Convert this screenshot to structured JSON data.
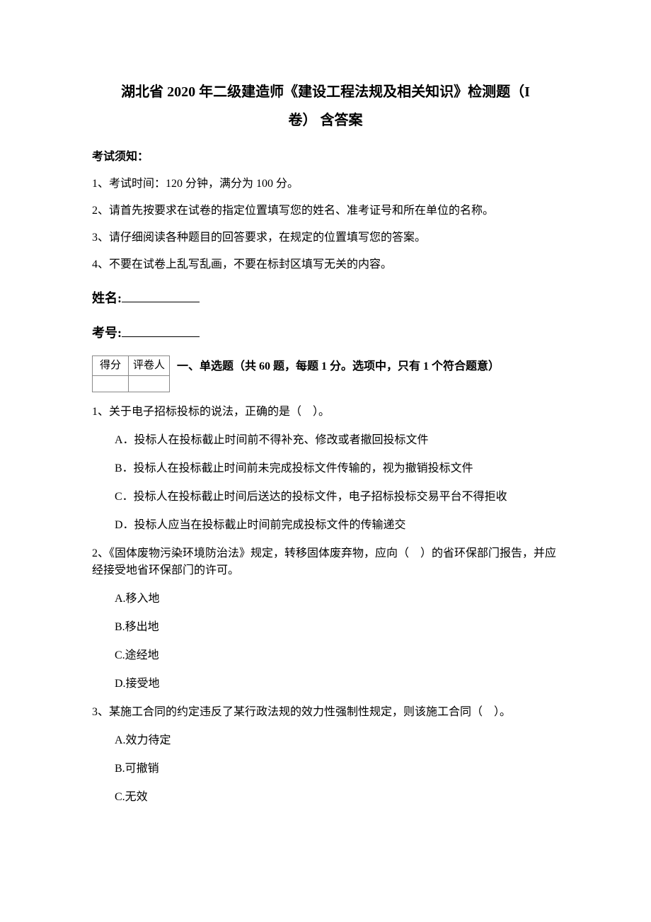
{
  "title_line1": "湖北省 2020 年二级建造师《建设工程法规及相关知识》检测题（I",
  "title_line2": "卷）  含答案",
  "notice_heading": "考试须知：",
  "instructions": [
    "1、考试时间：120 分钟，满分为 100 分。",
    "2、请首先按要求在试卷的指定位置填写您的姓名、准考证号和所在单位的名称。",
    "3、请仔细阅读各种题目的回答要求，在规定的位置填写您的答案。",
    "4、不要在试卷上乱写乱画，不要在标封区填写无关的内容。"
  ],
  "name_label": "姓名:",
  "id_label": "考号:",
  "score_header": [
    "得分",
    "评卷人"
  ],
  "section1_title": "一、单选题（共 60 题，每题 1 分。选项中，只有 1 个符合题意）",
  "questions": [
    {
      "stem": "1、关于电子招标投标的说法，正确的是（　）。",
      "options": [
        "A．投标人在投标截止时间前不得补充、修改或者撤回投标文件",
        "B．投标人在投标截止时间前未完成投标文件传输的，视为撤销投标文件",
        "C．投标人在投标截止时间后送达的投标文件，电子招标投标交易平台不得拒收",
        "D．投标人应当在投标截止时间前完成投标文件的传输递交"
      ]
    },
    {
      "stem": "2、《固体废物污染环境防治法》规定，转移固体废弃物，应向（　）的省环保部门报告，并应经接受地省环保部门的许可。",
      "options": [
        "A.移入地",
        "B.移出地",
        "C.途经地",
        "D.接受地"
      ]
    },
    {
      "stem": "3、某施工合同的约定违反了某行政法规的效力性强制性规定，则该施工合同（　）。",
      "options": [
        "A.效力待定",
        "B.可撤销",
        "C.无效"
      ]
    }
  ]
}
